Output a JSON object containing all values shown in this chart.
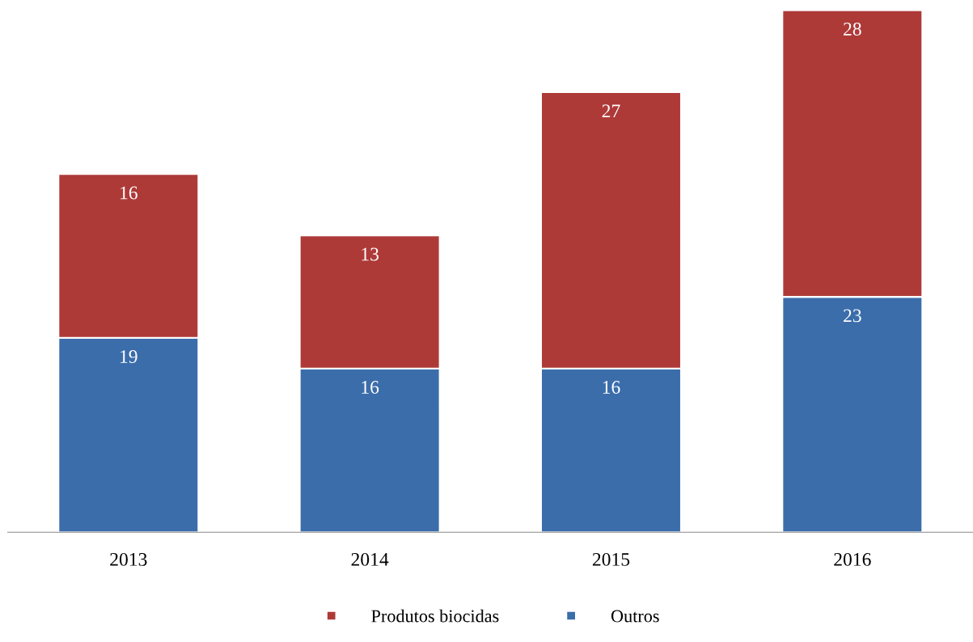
{
  "chart_data": {
    "type": "bar",
    "stacked": true,
    "categories": [
      "2013",
      "2014",
      "2015",
      "2016"
    ],
    "series": [
      {
        "name": "Outros",
        "color": "#3b6dab",
        "values": [
          19,
          16,
          16,
          23
        ]
      },
      {
        "name": "Produtos biocidas",
        "color": "#ae3a38",
        "values": [
          16,
          13,
          27,
          28
        ]
      }
    ],
    "ylim": [
      0,
      51
    ],
    "tick_labels": "x",
    "data_labels": true,
    "legend": "bottom",
    "grid": false
  }
}
